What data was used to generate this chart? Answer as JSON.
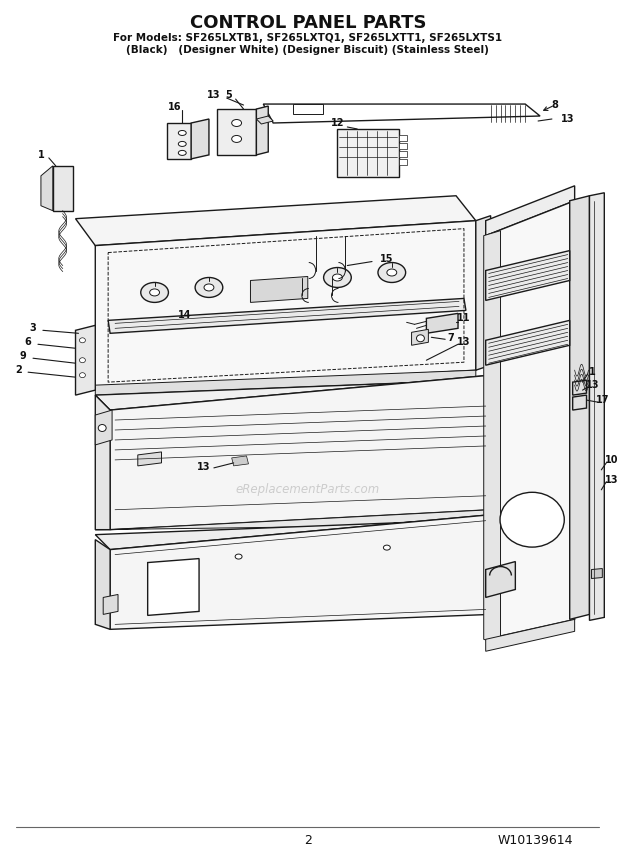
{
  "title": "CONTROL PANEL PARTS",
  "subtitle_line1": "For Models: SF265LXTB1, SF265LXTQ1, SF265LXTT1, SF265LXTS1",
  "subtitle_line2": "(Black)   (Designer White) (Designer Biscuit) (Stainless Steel)",
  "page_number": "2",
  "part_number": "W10139614",
  "watermark": "eReplacementParts.com",
  "bg_color": "#ffffff",
  "line_color": "#1a1a1a",
  "text_color": "#111111",
  "watermark_color": "#c8c8c8",
  "fig_width": 6.2,
  "fig_height": 8.56,
  "dpi": 100
}
